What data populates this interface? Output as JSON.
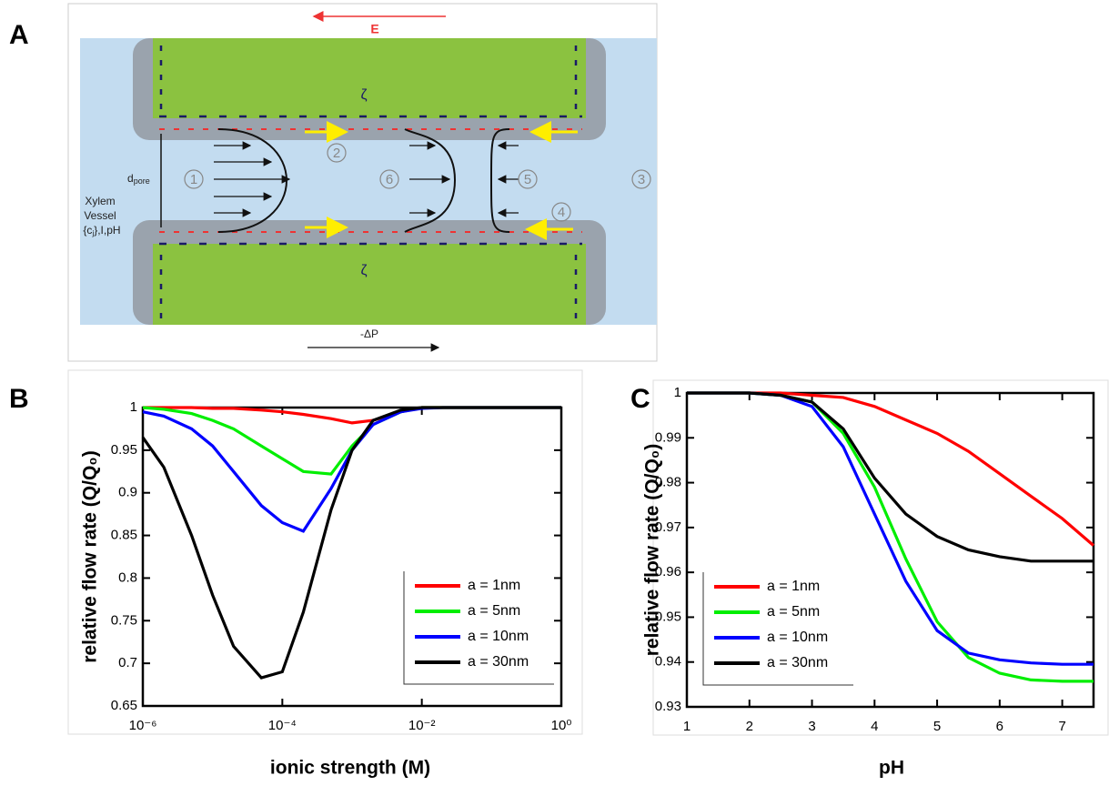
{
  "panel_labels": [
    "A",
    "B",
    "C"
  ],
  "diagram": {
    "field_label": "E",
    "pressure_label": "-ΔP",
    "zeta_top": "ζ",
    "zeta_bottom": "ζ",
    "pore": {
      "main": "d",
      "sub": "pore"
    },
    "vessel_lines": [
      "Xylem",
      "Vessel"
    ],
    "vessel_conditions": {
      "open": "{c",
      "sub": "j",
      "close": "},I,pH"
    },
    "steps": [
      "1",
      "2",
      "3",
      "4",
      "5",
      "6"
    ]
  },
  "chart_data": [
    {
      "type": "line",
      "xlabel": "ionic strength (M)",
      "ylabel": "relative flow rate (Q/Q₀)",
      "xscale": "log",
      "legend": "lower right",
      "xlim": [
        1e-06,
        1
      ],
      "xticks": [
        {
          "value": 1e-06,
          "label": "10⁻⁶"
        },
        {
          "value": 0.0001,
          "label": "10⁻⁴"
        },
        {
          "value": 0.01,
          "label": "10⁻²"
        },
        {
          "value": 1,
          "label": "10⁰"
        }
      ],
      "ylim": [
        0.65,
        1
      ],
      "yticks": [
        0.65,
        0.7,
        0.75,
        0.8,
        0.85,
        0.9,
        0.95,
        1
      ],
      "x": [
        1e-06,
        2e-06,
        5e-06,
        1e-05,
        2e-05,
        5e-05,
        0.0001,
        0.0002,
        0.0005,
        0.001,
        0.002,
        0.005,
        0.01,
        0.02,
        0.05,
        0.1,
        0.2,
        0.5,
        1
      ],
      "series": [
        {
          "name": "a = 1nm",
          "color": "#ff0000",
          "values": [
            1,
            1,
            1,
            0.999,
            0.999,
            0.997,
            0.995,
            0.992,
            0.987,
            0.982,
            0.985,
            0.995,
            1,
            1,
            1,
            1,
            1,
            1,
            1
          ]
        },
        {
          "name": "a = 5nm",
          "color": "#00ee00",
          "values": [
            1,
            0.998,
            0.993,
            0.985,
            0.975,
            0.955,
            0.94,
            0.925,
            0.922,
            0.955,
            0.98,
            0.995,
            1,
            1,
            1,
            1,
            1,
            1,
            1
          ]
        },
        {
          "name": "a = 10nm",
          "color": "#0000ff",
          "values": [
            0.995,
            0.99,
            0.975,
            0.955,
            0.925,
            0.885,
            0.865,
            0.855,
            0.905,
            0.95,
            0.98,
            0.995,
            0.999,
            1,
            1,
            1,
            1,
            1,
            1
          ]
        },
        {
          "name": "a = 30nm",
          "color": "#000000",
          "values": [
            0.965,
            0.93,
            0.85,
            0.78,
            0.72,
            0.683,
            0.69,
            0.76,
            0.88,
            0.95,
            0.985,
            0.997,
            1,
            1,
            1,
            1,
            1,
            1,
            1
          ]
        }
      ]
    },
    {
      "type": "line",
      "xlabel": "pH",
      "ylabel": "relative flow rate (Q/Q₀)",
      "legend": "lower left",
      "xlim": [
        1,
        7.5
      ],
      "xticks": [
        1,
        2,
        3,
        4,
        5,
        6,
        7
      ],
      "ylim": [
        0.93,
        1
      ],
      "yticks": [
        0.93,
        0.94,
        0.95,
        0.96,
        0.97,
        0.98,
        0.99,
        1
      ],
      "x": [
        1,
        1.5,
        2,
        2.5,
        3,
        3.5,
        4,
        4.5,
        5,
        5.5,
        6,
        6.5,
        7,
        7.5
      ],
      "series": [
        {
          "name": "a = 1nm",
          "color": "#ff0000",
          "values": [
            1,
            1,
            1,
            1,
            0.9995,
            0.999,
            0.997,
            0.994,
            0.991,
            0.987,
            0.982,
            0.977,
            0.972,
            0.966
          ]
        },
        {
          "name": "a = 5nm",
          "color": "#00ee00",
          "values": [
            1,
            1,
            1,
            0.9995,
            0.998,
            0.991,
            0.979,
            0.963,
            0.949,
            0.941,
            0.9375,
            0.936,
            0.9357,
            0.9357
          ]
        },
        {
          "name": "a = 10nm",
          "color": "#0000ff",
          "values": [
            1,
            1,
            1,
            0.9995,
            0.997,
            0.988,
            0.973,
            0.958,
            0.947,
            0.942,
            0.9405,
            0.9398,
            0.9395,
            0.9395
          ]
        },
        {
          "name": "a = 30nm",
          "color": "#000000",
          "values": [
            1,
            1,
            1,
            0.9995,
            0.998,
            0.992,
            0.981,
            0.973,
            0.968,
            0.965,
            0.9635,
            0.9625,
            0.9625,
            0.9625
          ]
        }
      ]
    }
  ]
}
